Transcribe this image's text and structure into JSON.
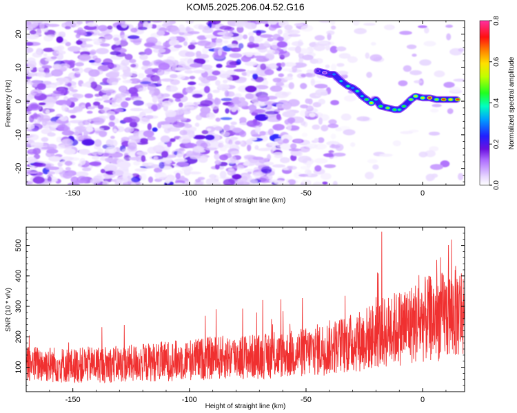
{
  "title": "KOM5.2025.206.04.52.G16",
  "chart_data": [
    {
      "type": "heatmap",
      "xlabel": "Height of straight line (km)",
      "ylabel": "Frequency (Hz)",
      "xlim": [
        -170,
        18
      ],
      "ylim": [
        -25,
        24
      ],
      "x_ticks": [
        -150,
        -100,
        -50,
        0
      ],
      "y_ticks": [
        -20,
        -10,
        0,
        10,
        20
      ],
      "x_tick_labels": [
        "-150",
        "-100",
        "-50",
        "0"
      ],
      "y_tick_labels": [
        "-20",
        "-10",
        "0",
        "10",
        "20"
      ],
      "colorbar": {
        "label": "Normalized spectral amplitude",
        "range": [
          0.0,
          0.8
        ],
        "ticks": [
          0.0,
          0.2,
          0.4,
          0.6,
          0.8
        ],
        "tick_labels": [
          "0.0",
          "0.2",
          "0.4",
          "0.6",
          "0.8"
        ]
      },
      "ridge": {
        "x": [
          -45,
          -42,
          -40,
          -38,
          -35,
          -32,
          -30,
          -28,
          -26,
          -24,
          -22,
          -20,
          -18,
          -15,
          -12,
          -10,
          -8,
          -5,
          -3,
          0,
          3,
          6,
          9,
          12,
          15
        ],
        "freq": [
          9,
          8.5,
          8,
          8,
          6,
          4.5,
          4,
          3,
          1.5,
          0.5,
          -0.5,
          0.5,
          -1.5,
          -2,
          -2.5,
          -2.5,
          -1.5,
          0.5,
          1.5,
          1.0,
          1.0,
          0.5,
          0.5,
          0.5,
          0.5
        ],
        "amp": [
          0.2,
          0.15,
          0.25,
          0.3,
          0.35,
          0.4,
          0.3,
          0.4,
          0.35,
          0.45,
          0.55,
          0.35,
          0.45,
          0.5,
          0.45,
          0.4,
          0.45,
          0.5,
          0.55,
          0.55,
          0.75,
          0.5,
          0.7,
          0.6,
          0.7
        ]
      }
    },
    {
      "type": "line",
      "xlabel": "Height of straight line (km)",
      "ylabel": "SNR (10 * v/v)",
      "xlim": [
        -170,
        18
      ],
      "ylim": [
        20,
        560
      ],
      "x_ticks": [
        -150,
        -100,
        -50,
        0
      ],
      "y_ticks": [
        100,
        200,
        300,
        400,
        500
      ],
      "x_tick_labels": [
        "-150",
        "-100",
        "-50",
        "0"
      ],
      "y_tick_labels": [
        "100",
        "200",
        "300",
        "400",
        "500"
      ],
      "series": [
        {
          "color": "#f03030",
          "x": [
            -170,
            -160,
            -150,
            -140,
            -130,
            -120,
            -110,
            -100,
            -90,
            -80,
            -70,
            -60,
            -50,
            -40,
            -30,
            -20,
            -10,
            0,
            10,
            18
          ],
          "y": [
            110,
            110,
            105,
            110,
            110,
            115,
            120,
            125,
            130,
            135,
            135,
            140,
            150,
            165,
            180,
            205,
            230,
            255,
            270,
            290
          ]
        }
      ]
    }
  ]
}
